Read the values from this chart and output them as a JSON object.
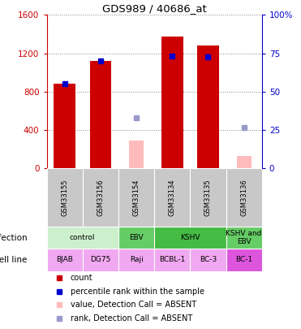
{
  "title": "GDS989 / 40686_at",
  "samples": [
    "GSM33155",
    "GSM33156",
    "GSM33154",
    "GSM33134",
    "GSM33135",
    "GSM33136"
  ],
  "bar_values_red": [
    880,
    1120,
    null,
    1370,
    1280,
    null
  ],
  "bar_values_pink": [
    null,
    null,
    290,
    null,
    null,
    130
  ],
  "blue_square_y_left": [
    880,
    1120,
    null,
    1170,
    1160,
    null
  ],
  "light_blue_square_y_left": [
    null,
    null,
    530,
    null,
    null,
    430
  ],
  "ylim_left": [
    0,
    1600
  ],
  "ylim_right": [
    0,
    100
  ],
  "yticks_left": [
    0,
    400,
    800,
    1200,
    1600
  ],
  "yticks_right": [
    0,
    25,
    50,
    75,
    100
  ],
  "ytick_labels_right": [
    "0",
    "25",
    "50",
    "75",
    "100%"
  ],
  "infection_spans": [
    {
      "start": 0,
      "end": 2,
      "label": "control",
      "color": "#ccf0cc"
    },
    {
      "start": 2,
      "end": 3,
      "label": "EBV",
      "color": "#66cc66"
    },
    {
      "start": 3,
      "end": 5,
      "label": "KSHV",
      "color": "#44bb44"
    },
    {
      "start": 5,
      "end": 6,
      "label": "KSHV and\nEBV",
      "color": "#66cc66"
    }
  ],
  "cell_lines": [
    "BJAB",
    "DG75",
    "Raji",
    "BCBL-1",
    "BC-3",
    "BC-1"
  ],
  "cell_line_colors": [
    "#f0a8f0",
    "#f0a8f0",
    "#f0a8f0",
    "#f0a8f0",
    "#f0a8f0",
    "#dd55dd"
  ],
  "bar_color_red": "#cc0000",
  "bar_color_pink": "#ffbbbb",
  "blue_color": "#0000cc",
  "light_blue_color": "#9999cc",
  "sample_bg_color": "#c8c8c8",
  "left_axis_color": "#cc0000",
  "right_axis_color": "#0000cc",
  "grid_color": "#888888",
  "legend_items": [
    {
      "color": "#cc0000",
      "marker": "s",
      "label": "count"
    },
    {
      "color": "#0000cc",
      "marker": "s",
      "label": "percentile rank within the sample"
    },
    {
      "color": "#ffbbbb",
      "marker": "s",
      "label": "value, Detection Call = ABSENT"
    },
    {
      "color": "#9999cc",
      "marker": "s",
      "label": "rank, Detection Call = ABSENT"
    }
  ]
}
